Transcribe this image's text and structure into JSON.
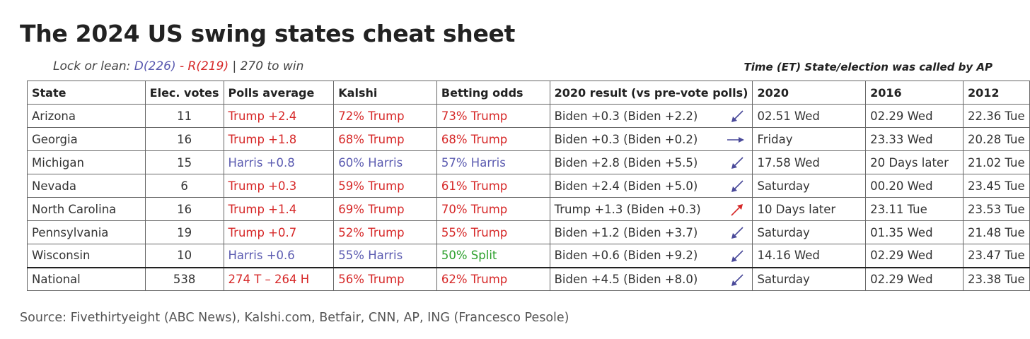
{
  "header": {
    "title": "The 2024 US swing states cheat sheet",
    "subtitle": {
      "lead": "Lock or lean:",
      "dem": "D(226)",
      "sep": "-",
      "rep": "R(219)",
      "rest": "| 270 to win"
    },
    "note": "Time (ET) State/election was called by AP"
  },
  "table": {
    "columns": [
      "State",
      "Elec. votes",
      "Polls average",
      "Kalshi",
      "Betting odds",
      "2020 result (vs pre-vote polls)",
      "2020",
      "2016",
      "2012"
    ],
    "rows": [
      [
        "Arizona",
        "11",
        "Trump +2.4",
        "72% Trump",
        "73% Trump",
        "Biden +0.3 (Biden +2.2)",
        "02.51 Wed",
        "02.29 Wed",
        "22.36 Tue"
      ],
      [
        "Georgia",
        "16",
        "Trump +1.8",
        "68% Trump",
        "68% Trump",
        "Biden +0.3 (Biden +0.2)",
        "Friday",
        "23.33 Wed",
        "20.28 Tue"
      ],
      [
        "Michigan",
        "15",
        "Harris +0.8",
        "60% Harris",
        "57% Harris",
        "Biden +2.8 (Biden +5.5)",
        "17.58 Wed",
        "20 Days later",
        "21.02 Tue"
      ],
      [
        "Nevada",
        "6",
        "Trump +0.3",
        "59% Trump",
        "61% Trump",
        "Biden +2.4 (Biden +5.0)",
        "Saturday",
        "00.20 Wed",
        "23.45 Tue"
      ],
      [
        "North Carolina",
        "16",
        "Trump +1.4",
        "69% Trump",
        "70% Trump",
        "Trump +1.3 (Biden +0.3)",
        "10 Days later",
        "23.11 Tue",
        "23.53 Tue"
      ],
      [
        "Pennsylvania",
        "19",
        "Trump +0.7",
        "52% Trump",
        "55% Trump",
        "Biden +1.2 (Biden +3.7)",
        "Saturday",
        "01.35 Wed",
        "21.48 Tue"
      ],
      [
        "Wisconsin",
        "10",
        "Harris +0.6",
        "55% Harris",
        "50% Split",
        "Biden +0.6 (Biden +9.2)",
        "14.16 Wed",
        "02.29 Wed",
        "23.47 Tue"
      ],
      [
        "National",
        "538",
        "274 T – 264 H",
        "56% Trump",
        "62% Trump",
        "Biden +4.5 (Biden +8.0)",
        "Saturday",
        "02.29 Wed",
        "23.38 Tue"
      ]
    ]
  },
  "source": "Source: Fivethirtyeight (ABC News), Kalshi.com, Betfair, CNN, AP, ING (Francesco Pesole)"
}
